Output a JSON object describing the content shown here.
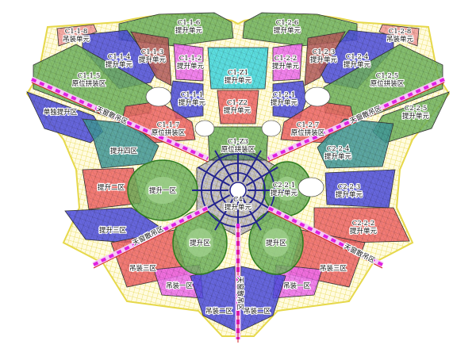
{
  "colors": {
    "green": "#6fb25c",
    "blue": "#4b4bdc",
    "red": "#ee6464",
    "magenta": "#ee6cee",
    "teal": "#3f9796",
    "brown": "#b45a5a",
    "cyan": "#3ed6df",
    "pink": "#f39a9a",
    "mesh_yellow": "#eee46a",
    "skylight_magenta": "#e020e0",
    "center_blue": "#23238f",
    "outline_green": "#2f7d1f"
  },
  "regions": [
    {
      "id": "c1-1-8",
      "lines": [
        "C1-1-8",
        "吊装单元"
      ],
      "color": "pink"
    },
    {
      "id": "c1-1-6",
      "lines": [
        "C1-1-6",
        "提升单元"
      ],
      "color": "green"
    },
    {
      "id": "c1-1-4",
      "lines": [
        "C1-1-4",
        "提升单元"
      ],
      "color": "blue"
    },
    {
      "id": "c1-1-3",
      "lines": [
        "C1-1-3",
        "提升单元"
      ],
      "color": "brown"
    },
    {
      "id": "c1-1-2",
      "lines": [
        "C1-1-2",
        "提升单元"
      ],
      "color": "magenta"
    },
    {
      "id": "c1-z1",
      "lines": [
        "C1-Z1",
        "提升单元"
      ],
      "color": "cyan"
    },
    {
      "id": "c1-1-5",
      "lines": [
        "C1-1-5",
        "原位拼装区"
      ],
      "color": "green"
    },
    {
      "id": "solo-lift",
      "lines": [
        "单独提升区"
      ],
      "color": "blue"
    },
    {
      "id": "c1-1-1",
      "lines": [
        "C1-1-1",
        "提升单元"
      ],
      "color": "blue"
    },
    {
      "id": "c1-1-7",
      "lines": [
        "C1-1-7",
        "原位拼装区"
      ],
      "color": "red"
    },
    {
      "id": "c1-z2",
      "lines": [
        "C1-Z2",
        "提升单元"
      ],
      "color": "red"
    },
    {
      "id": "c1-z3",
      "lines": [
        "C1-Z3",
        "原位拼装区"
      ],
      "color": "green"
    },
    {
      "id": "lift-4",
      "lines": [
        "提升四区"
      ],
      "color": "teal"
    },
    {
      "id": "lift-2",
      "lines": [
        "提升二区"
      ],
      "color": "red"
    },
    {
      "id": "lift-3",
      "lines": [
        "提升三区"
      ],
      "color": "blue"
    },
    {
      "id": "hoist-3-left",
      "lines": [
        "吊装三区"
      ],
      "color": "red"
    },
    {
      "id": "hoist-1-left",
      "lines": [
        "吊装一区"
      ],
      "color": "magenta"
    },
    {
      "id": "hoist-2-left",
      "lines": [
        "吊装二区"
      ],
      "color": "blue"
    },
    {
      "id": "c1-2-8",
      "lines": [
        "C1-2-8",
        "吊装单元"
      ],
      "color": "pink"
    },
    {
      "id": "c1-2-6",
      "lines": [
        "C1-2-6",
        "提升单元"
      ],
      "color": "green"
    },
    {
      "id": "c1-2-4",
      "lines": [
        "C1-2-4",
        "提升单元"
      ],
      "color": "blue"
    },
    {
      "id": "c1-2-3",
      "lines": [
        "C1-2-3",
        "提升单元"
      ],
      "color": "brown"
    },
    {
      "id": "c1-2-2",
      "lines": [
        "C1-2-2",
        "提升单元"
      ],
      "color": "magenta"
    },
    {
      "id": "c1-2-5",
      "lines": [
        "C1-2-5",
        "原位拼装区"
      ],
      "color": "green"
    },
    {
      "id": "c2-2-5",
      "lines": [
        "C2-2-5",
        "提升单元"
      ],
      "color": "green"
    },
    {
      "id": "c1-2-1",
      "lines": [
        "C1-2-1",
        "提升单元"
      ],
      "color": "blue"
    },
    {
      "id": "c1-2-7",
      "lines": [
        "C1-2-7",
        "原位拼装区"
      ],
      "color": "red"
    },
    {
      "id": "c2-2-4",
      "lines": [
        "C2-2-4",
        "提升单元"
      ],
      "color": "teal"
    },
    {
      "id": "c2-2-3",
      "lines": [
        "C2-2-3",
        "提升单元"
      ],
      "color": "blue"
    },
    {
      "id": "c2-2-2",
      "lines": [
        "C2-2-2",
        "提升单元"
      ],
      "color": "red"
    },
    {
      "id": "hoist-3-right",
      "lines": [
        "吊装三区"
      ],
      "color": "red"
    },
    {
      "id": "hoist-1-right",
      "lines": [
        "吊装一区"
      ],
      "color": "magenta"
    },
    {
      "id": "hoist-2-right",
      "lines": [
        "吊装二区"
      ],
      "color": "blue"
    },
    {
      "id": "c4",
      "lines": [
        "C4",
        "提升单元"
      ],
      "color": "center_blue"
    },
    {
      "id": "lift-1",
      "lines": [
        "提升一区"
      ],
      "color": "green"
    },
    {
      "id": "c2-2-1",
      "lines": [
        "C2-2-1",
        "提升单元"
      ],
      "color": "green"
    },
    {
      "id": "lift-left",
      "lines": [
        "提升区"
      ],
      "color": "green"
    },
    {
      "id": "lift-right",
      "lines": [
        "提升区"
      ],
      "color": "green"
    }
  ],
  "skylight_strips": [
    {
      "id": "upper-left",
      "label": "天窗散吊区"
    },
    {
      "id": "upper-right",
      "label": "天窗散吊区"
    },
    {
      "id": "lower-left",
      "label": "天窗散吊区"
    },
    {
      "id": "lower-right",
      "label": "天窗散吊区"
    },
    {
      "id": "bottom",
      "label": "天窗散吊区"
    }
  ]
}
